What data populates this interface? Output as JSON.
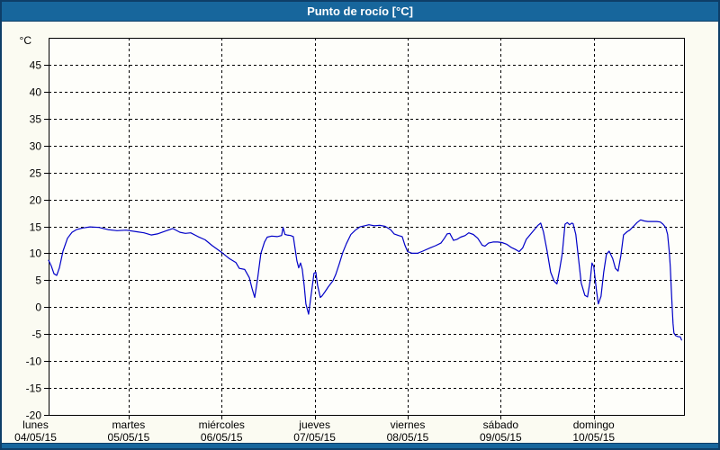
{
  "header": {
    "title": "Punto de rocío [°C]"
  },
  "colors": {
    "header_bg": "#17669C",
    "frame_border": "#0E3E68",
    "panel_bg": "#FBFBF2",
    "plot_bg": "#FEFEFA",
    "grid": "#000000",
    "axis": "#000000",
    "line": "#0000C8",
    "title_text": "#FFFFFF"
  },
  "chart_data": {
    "type": "line",
    "title": "Punto de rocío [°C]",
    "ylabel": "°C",
    "ylim": [
      -20,
      50
    ],
    "yticks": [
      -20,
      -15,
      -10,
      -5,
      0,
      5,
      10,
      15,
      20,
      25,
      30,
      35,
      40,
      45
    ],
    "grid": "dashed",
    "legend": "none",
    "xlim_days": [
      0.14,
      6.97
    ],
    "day_gridlines": [
      1,
      2,
      3,
      4,
      5,
      6
    ],
    "x_days": [
      {
        "name": "lunes",
        "date": "04/05/15"
      },
      {
        "name": "martes",
        "date": "05/05/15"
      },
      {
        "name": "miércoles",
        "date": "06/05/15"
      },
      {
        "name": "jueves",
        "date": "07/05/15"
      },
      {
        "name": "viernes",
        "date": "08/05/15"
      },
      {
        "name": "sábado",
        "date": "09/05/15"
      },
      {
        "name": "domingo",
        "date": "10/05/15"
      }
    ],
    "series": [
      {
        "name": "Punto de rocío",
        "unit": "°C",
        "color": "#0000C8",
        "points": [
          [
            0.14,
            8.7
          ],
          [
            0.17,
            7.6
          ],
          [
            0.198,
            6.2
          ],
          [
            0.227,
            5.9
          ],
          [
            0.256,
            7.3
          ],
          [
            0.295,
            10.4
          ],
          [
            0.343,
            12.8
          ],
          [
            0.392,
            13.9
          ],
          [
            0.44,
            14.4
          ],
          [
            0.508,
            14.7
          ],
          [
            0.585,
            14.9
          ],
          [
            0.682,
            14.8
          ],
          [
            0.778,
            14.4
          ],
          [
            0.875,
            14.2
          ],
          [
            0.972,
            14.3
          ],
          [
            1.088,
            14.0
          ],
          [
            1.165,
            13.8
          ],
          [
            1.243,
            13.4
          ],
          [
            1.31,
            13.6
          ],
          [
            1.407,
            14.2
          ],
          [
            1.475,
            14.6
          ],
          [
            1.552,
            13.9
          ],
          [
            1.61,
            13.7
          ],
          [
            1.668,
            13.8
          ],
          [
            1.746,
            13.1
          ],
          [
            1.823,
            12.5
          ],
          [
            1.9,
            11.4
          ],
          [
            1.997,
            10.2
          ],
          [
            2.084,
            9.0
          ],
          [
            2.152,
            8.3
          ],
          [
            2.19,
            7.2
          ],
          [
            2.248,
            7.0
          ],
          [
            2.297,
            5.5
          ],
          [
            2.326,
            3.5
          ],
          [
            2.355,
            1.8
          ],
          [
            2.384,
            5.0
          ],
          [
            2.422,
            10.0
          ],
          [
            2.461,
            12.1
          ],
          [
            2.49,
            13.0
          ],
          [
            2.538,
            13.2
          ],
          [
            2.596,
            13.1
          ],
          [
            2.645,
            13.3
          ],
          [
            2.66,
            14.8
          ],
          [
            2.68,
            13.5
          ],
          [
            2.703,
            13.4
          ],
          [
            2.741,
            13.3
          ],
          [
            2.77,
            13.1
          ],
          [
            2.809,
            8.6
          ],
          [
            2.828,
            7.3
          ],
          [
            2.848,
            8.2
          ],
          [
            2.867,
            7.0
          ],
          [
            2.887,
            4.0
          ],
          [
            2.906,
            0.6
          ],
          [
            2.935,
            -1.3
          ],
          [
            2.964,
            2.5
          ],
          [
            2.993,
            6.3
          ],
          [
            3.012,
            6.5
          ],
          [
            3.032,
            4.0
          ],
          [
            3.061,
            1.8
          ],
          [
            3.08,
            2.1
          ],
          [
            3.109,
            2.8
          ],
          [
            3.148,
            3.8
          ],
          [
            3.196,
            4.9
          ],
          [
            3.225,
            6.0
          ],
          [
            3.264,
            8.0
          ],
          [
            3.303,
            10.2
          ],
          [
            3.341,
            11.8
          ],
          [
            3.39,
            13.5
          ],
          [
            3.438,
            14.3
          ],
          [
            3.486,
            14.9
          ],
          [
            3.535,
            15.1
          ],
          [
            3.583,
            15.3
          ],
          [
            3.641,
            15.1
          ],
          [
            3.699,
            15.2
          ],
          [
            3.757,
            15.0
          ],
          [
            3.815,
            14.4
          ],
          [
            3.854,
            13.6
          ],
          [
            3.902,
            13.3
          ],
          [
            3.941,
            13.1
          ],
          [
            3.97,
            11.5
          ],
          [
            3.999,
            10.3
          ],
          [
            4.047,
            10.0
          ],
          [
            4.105,
            10.0
          ],
          [
            4.163,
            10.4
          ],
          [
            4.241,
            11.0
          ],
          [
            4.299,
            11.4
          ],
          [
            4.357,
            11.9
          ],
          [
            4.395,
            12.8
          ],
          [
            4.424,
            13.6
          ],
          [
            4.453,
            13.7
          ],
          [
            4.492,
            12.4
          ],
          [
            4.531,
            12.6
          ],
          [
            4.569,
            13.0
          ],
          [
            4.618,
            13.3
          ],
          [
            4.656,
            13.8
          ],
          [
            4.705,
            13.5
          ],
          [
            4.753,
            12.8
          ],
          [
            4.801,
            11.5
          ],
          [
            4.83,
            11.3
          ],
          [
            4.869,
            11.9
          ],
          [
            4.917,
            12.1
          ],
          [
            4.966,
            12.1
          ],
          [
            5.014,
            12.0
          ],
          [
            5.062,
            11.7
          ],
          [
            5.111,
            11.1
          ],
          [
            5.159,
            10.7
          ],
          [
            5.198,
            10.3
          ],
          [
            5.236,
            11.0
          ],
          [
            5.275,
            12.6
          ],
          [
            5.323,
            13.6
          ],
          [
            5.362,
            14.4
          ],
          [
            5.401,
            15.2
          ],
          [
            5.43,
            15.6
          ],
          [
            5.459,
            14.0
          ],
          [
            5.498,
            10.5
          ],
          [
            5.536,
            6.5
          ],
          [
            5.575,
            4.8
          ],
          [
            5.604,
            4.3
          ],
          [
            5.633,
            7.0
          ],
          [
            5.662,
            10.0
          ],
          [
            5.691,
            15.4
          ],
          [
            5.715,
            15.7
          ],
          [
            5.74,
            15.3
          ],
          [
            5.765,
            15.6
          ],
          [
            5.778,
            15.5
          ],
          [
            5.807,
            13.5
          ],
          [
            5.836,
            9.0
          ],
          [
            5.865,
            4.5
          ],
          [
            5.904,
            2.2
          ],
          [
            5.933,
            1.9
          ],
          [
            5.962,
            5.0
          ],
          [
            5.981,
            8.2
          ],
          [
            6.001,
            7.5
          ],
          [
            6.03,
            3.0
          ],
          [
            6.049,
            0.6
          ],
          [
            6.078,
            2.0
          ],
          [
            6.107,
            6.5
          ],
          [
            6.136,
            9.8
          ],
          [
            6.165,
            10.4
          ],
          [
            6.204,
            9.0
          ],
          [
            6.233,
            7.2
          ],
          [
            6.262,
            6.7
          ],
          [
            6.291,
            9.5
          ],
          [
            6.32,
            13.4
          ],
          [
            6.358,
            14.0
          ],
          [
            6.387,
            14.3
          ],
          [
            6.426,
            15.0
          ],
          [
            6.465,
            15.7
          ],
          [
            6.504,
            16.2
          ],
          [
            6.542,
            16.0
          ],
          [
            6.581,
            15.9
          ],
          [
            6.629,
            15.9
          ],
          [
            6.678,
            15.9
          ],
          [
            6.716,
            15.8
          ],
          [
            6.745,
            15.4
          ],
          [
            6.774,
            14.8
          ],
          [
            6.794,
            13.5
          ],
          [
            6.813,
            10.0
          ],
          [
            6.823,
            7.4
          ],
          [
            6.832,
            4.0
          ],
          [
            6.842,
            0.2
          ],
          [
            6.852,
            -3.0
          ],
          [
            6.862,
            -4.8
          ],
          [
            6.881,
            -5.3
          ],
          [
            6.91,
            -5.5
          ],
          [
            6.929,
            -5.5
          ],
          [
            6.944,
            -6.1
          ]
        ]
      }
    ]
  }
}
